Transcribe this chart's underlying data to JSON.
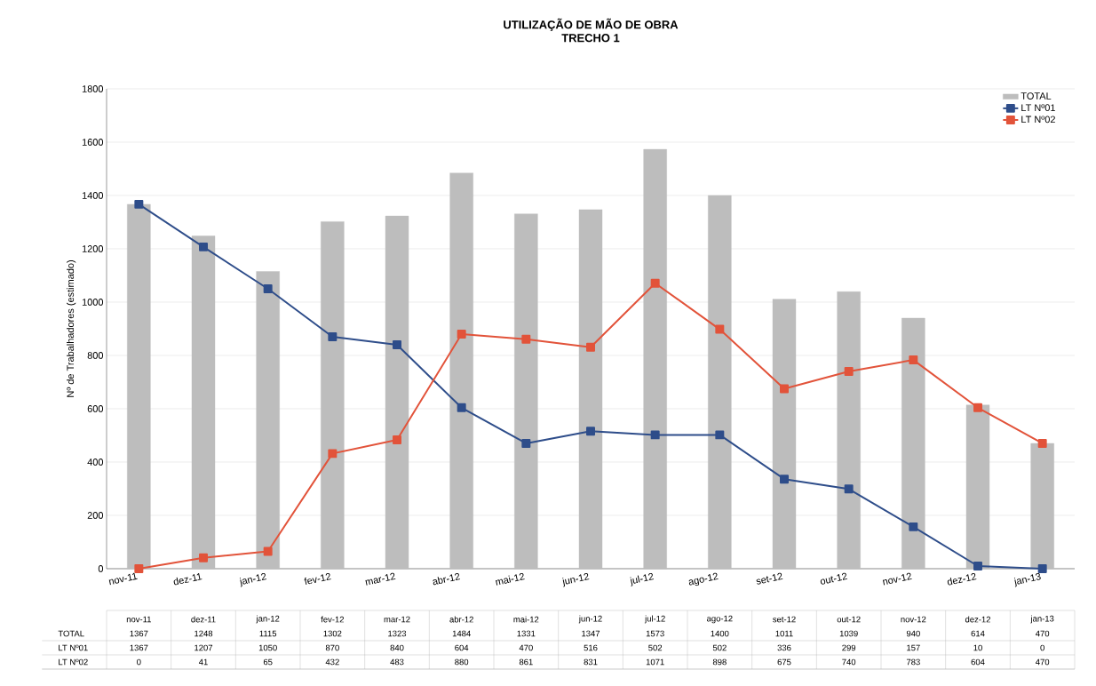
{
  "chart_data": {
    "type": "bar",
    "title": "UTILIZAÇÃO DE MÃO DE OBRA",
    "subtitle": "TRECHO 1",
    "ylabel": "Nº de Trabalhadores (estimado)",
    "categories": [
      "nov-11",
      "dez-11",
      "jan-12",
      "fev-12",
      "mar-12",
      "abr-12",
      "mai-12",
      "jun-12",
      "jul-12",
      "ago-12",
      "set-12",
      "out-12",
      "nov-12",
      "dez-12",
      "jan-13"
    ],
    "series": [
      {
        "name": "TOTAL",
        "color": "#bdbdbd",
        "values": [
          1367,
          1248,
          1115,
          1302,
          1323,
          1484,
          1331,
          1347,
          1573,
          1400,
          1011,
          1039,
          940,
          614,
          470
        ]
      },
      {
        "name": "LT Nº01",
        "type": "line",
        "color": "#2e4d8a",
        "values": [
          1367,
          1207,
          1050,
          870,
          840,
          604,
          470,
          516,
          502,
          502,
          336,
          299,
          157,
          10,
          0
        ]
      },
      {
        "name": "LT Nº02",
        "type": "line",
        "color": "#e2533a",
        "values": [
          0,
          41,
          65,
          432,
          483,
          880,
          861,
          831,
          1071,
          898,
          675,
          740,
          783,
          604,
          470
        ]
      }
    ],
    "ylim": [
      0,
      1800
    ],
    "yticks": [
      0,
      200,
      400,
      600,
      800,
      1000,
      1200,
      1400,
      1600,
      1800
    ],
    "grid": "y",
    "legend": "top right",
    "marker": "square",
    "data_labels": true
  }
}
